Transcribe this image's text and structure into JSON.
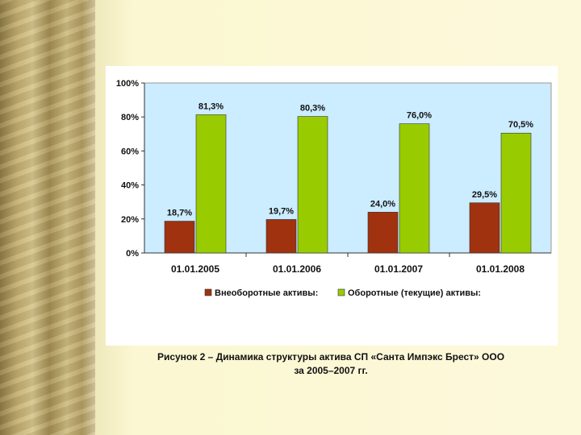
{
  "chart_data": {
    "type": "bar",
    "categories": [
      "01.01.2005",
      "01.01.2006",
      "01.01.2007",
      "01.01.2008"
    ],
    "series": [
      {
        "name": "Внеоборотные активы:",
        "values": [
          18.7,
          19.7,
          24.0,
          29.5
        ],
        "labels": [
          "18,7%",
          "19,7%",
          "24,0%",
          "29,5%"
        ],
        "color": "#a0320f"
      },
      {
        "name": "Оборотные (текущие) активы:",
        "values": [
          81.3,
          80.3,
          76.0,
          70.5
        ],
        "labels": [
          "81,3%",
          "80,3%",
          "76,0%",
          "70,5%"
        ],
        "color": "#99cc00"
      }
    ],
    "yticks": [
      "0%",
      "20%",
      "40%",
      "60%",
      "80%",
      "100%"
    ],
    "ylim": [
      0,
      100
    ],
    "grid": false,
    "legend_position": "bottom",
    "plot_background": "#ccecff"
  },
  "caption": {
    "line1": "Рисунок 2 – Динамика структуры актива СП «Санта Импэкс Брест» ООО",
    "line2": "за 2005–2007 гг."
  }
}
